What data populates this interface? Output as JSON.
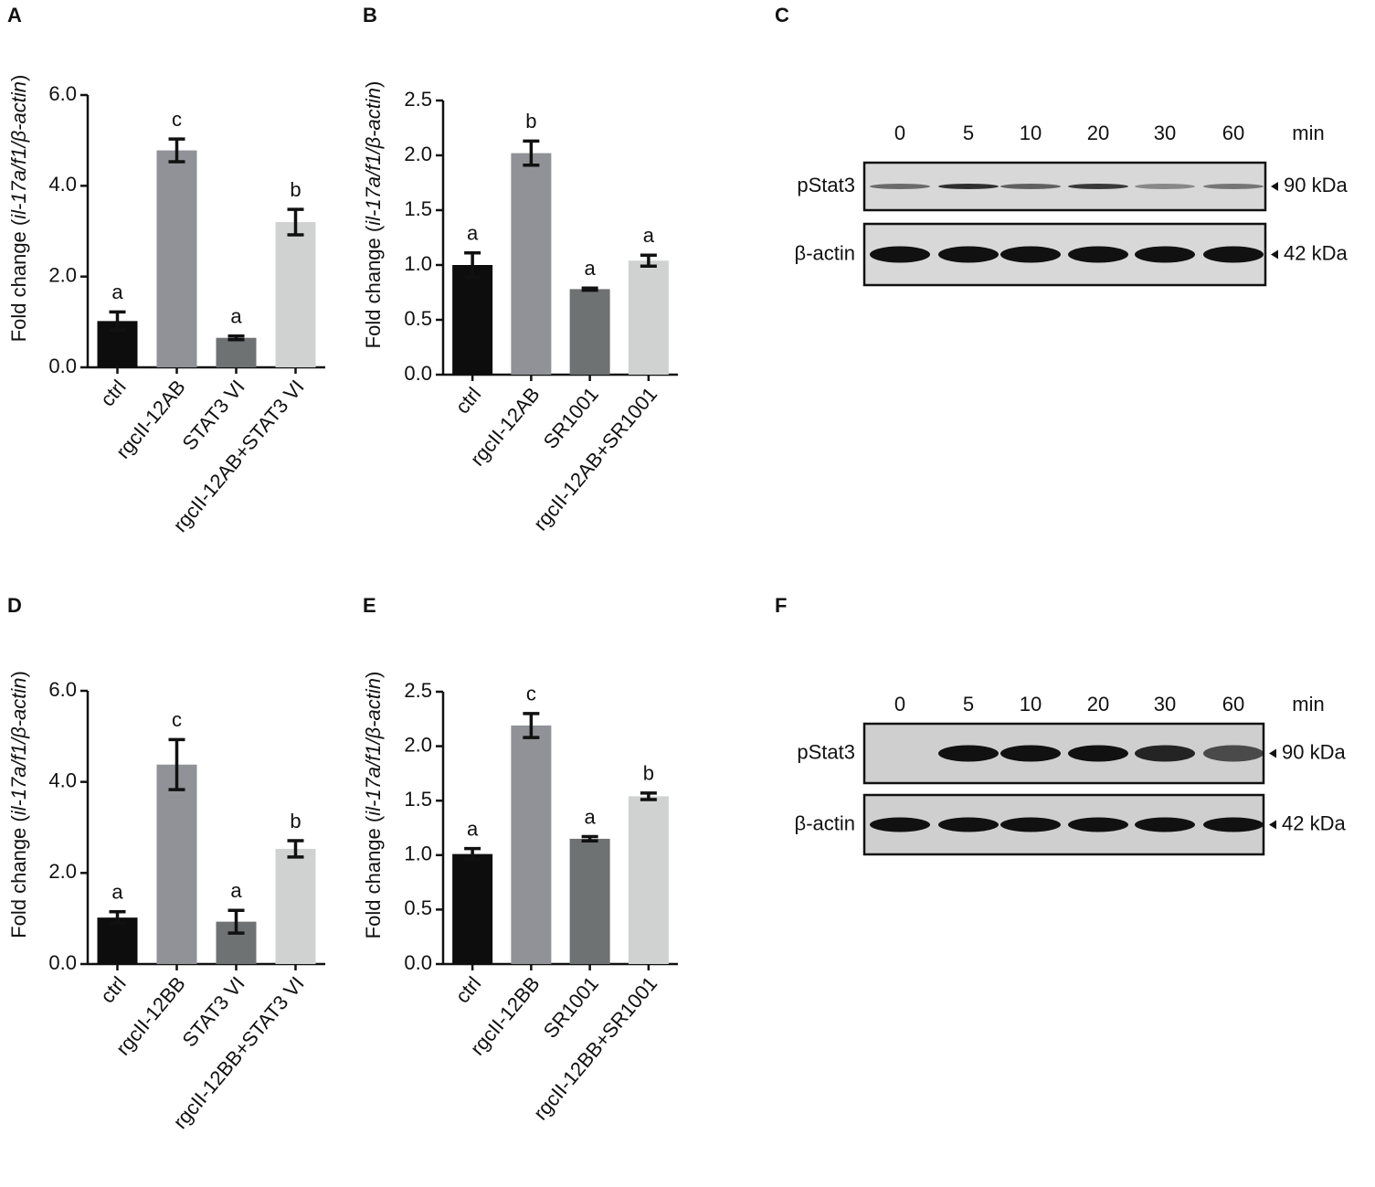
{
  "chart_data": [
    {
      "type": "bar",
      "panel": "A",
      "y_label": [
        "Fold change (",
        "il-17a/f1/β-actin",
        ")"
      ],
      "categories": [
        "ctrl",
        "rgcII-12AB",
        "STAT3 VI",
        "rgcII-12AB+STAT3 VI"
      ],
      "values": [
        1.02,
        4.78,
        0.65,
        3.2
      ],
      "errors": [
        0.2,
        0.25,
        0.04,
        0.28
      ],
      "annotations": [
        "a",
        "c",
        "a",
        "b"
      ],
      "colors": [
        "#0d0d0d",
        "#909297",
        "#6e7273",
        "#d0d1d1"
      ],
      "ylim": [
        0,
        6
      ],
      "yticks": [
        {
          "value": 0,
          "label": "0.0"
        },
        {
          "value": 2,
          "label": "2.0"
        },
        {
          "value": 4,
          "label": "4.0"
        },
        {
          "value": 6,
          "label": "6.0"
        }
      ]
    },
    {
      "type": "bar",
      "panel": "B",
      "y_label": [
        "Fold change (",
        "il-17a/f1/β-actin",
        ")"
      ],
      "categories": [
        "ctrl",
        "rgcII-12AB",
        "SR1001",
        "rgcII-12AB+SR1001"
      ],
      "values": [
        1.0,
        2.02,
        0.78,
        1.04
      ],
      "errors": [
        0.11,
        0.11,
        0.01,
        0.05
      ],
      "annotations": [
        "a",
        "b",
        "a",
        "a"
      ],
      "colors": [
        "#0d0d0d",
        "#909297",
        "#6e7273",
        "#d0d1d1"
      ],
      "ylim": [
        0,
        2.5
      ],
      "yticks": [
        {
          "value": 0,
          "label": "0.0"
        },
        0.5,
        {
          "value": 1,
          "label": "1.0"
        },
        1.5,
        {
          "value": 2,
          "label": "2.0"
        },
        2.5
      ]
    },
    {
      "type": "bar",
      "panel": "D",
      "y_label": [
        "Fold change (",
        "il-17a/f1/β-actin",
        ")"
      ],
      "categories": [
        "ctrl",
        "rgcII-12BB",
        "STAT3 VI",
        "rgcII-12BB+STAT3 VI"
      ],
      "values": [
        1.02,
        4.38,
        0.93,
        2.53
      ],
      "errors": [
        0.13,
        0.55,
        0.25,
        0.18
      ],
      "annotations": [
        "a",
        "c",
        "a",
        "b"
      ],
      "colors": [
        "#0d0d0d",
        "#909297",
        "#6e7273",
        "#d0d1d1"
      ],
      "ylim": [
        0,
        6
      ],
      "yticks": [
        {
          "value": 0,
          "label": "0.0"
        },
        {
          "value": 2,
          "label": "2.0"
        },
        {
          "value": 4,
          "label": "4.0"
        },
        {
          "value": 6,
          "label": "6.0"
        }
      ]
    },
    {
      "type": "bar",
      "panel": "E",
      "y_label": [
        "Fold change (",
        "il-17a/f1/β-actin",
        ")"
      ],
      "categories": [
        "ctrl",
        "rgcII-12BB",
        "SR1001",
        "rgcII-12BB+SR1001"
      ],
      "values": [
        1.01,
        2.19,
        1.15,
        1.54
      ],
      "errors": [
        0.05,
        0.11,
        0.02,
        0.03
      ],
      "annotations": [
        "a",
        "c",
        "a",
        "b"
      ],
      "colors": [
        "#0d0d0d",
        "#909297",
        "#6e7273",
        "#d0d1d1"
      ],
      "ylim": [
        0,
        2.5
      ],
      "yticks": [
        {
          "value": 0,
          "label": "0.0"
        },
        0.5,
        {
          "value": 1,
          "label": "1.0"
        },
        1.5,
        {
          "value": 2,
          "label": "2.0"
        },
        2.5
      ]
    }
  ],
  "blots": [
    {
      "panel": "C",
      "times": [
        "0",
        "5",
        "10",
        "20",
        "30",
        "60"
      ],
      "unit": "min",
      "rows": [
        {
          "name": "pStat3",
          "size": "90 kDa"
        },
        {
          "name": "β-actin",
          "size": "42 kDa"
        }
      ]
    },
    {
      "panel": "F",
      "times": [
        "0",
        "5",
        "10",
        "20",
        "30",
        "60"
      ],
      "unit": "min",
      "rows": [
        {
          "name": "pStat3",
          "size": "90 kDa"
        },
        {
          "name": "β-actin",
          "size": "42 kDa"
        }
      ]
    }
  ]
}
